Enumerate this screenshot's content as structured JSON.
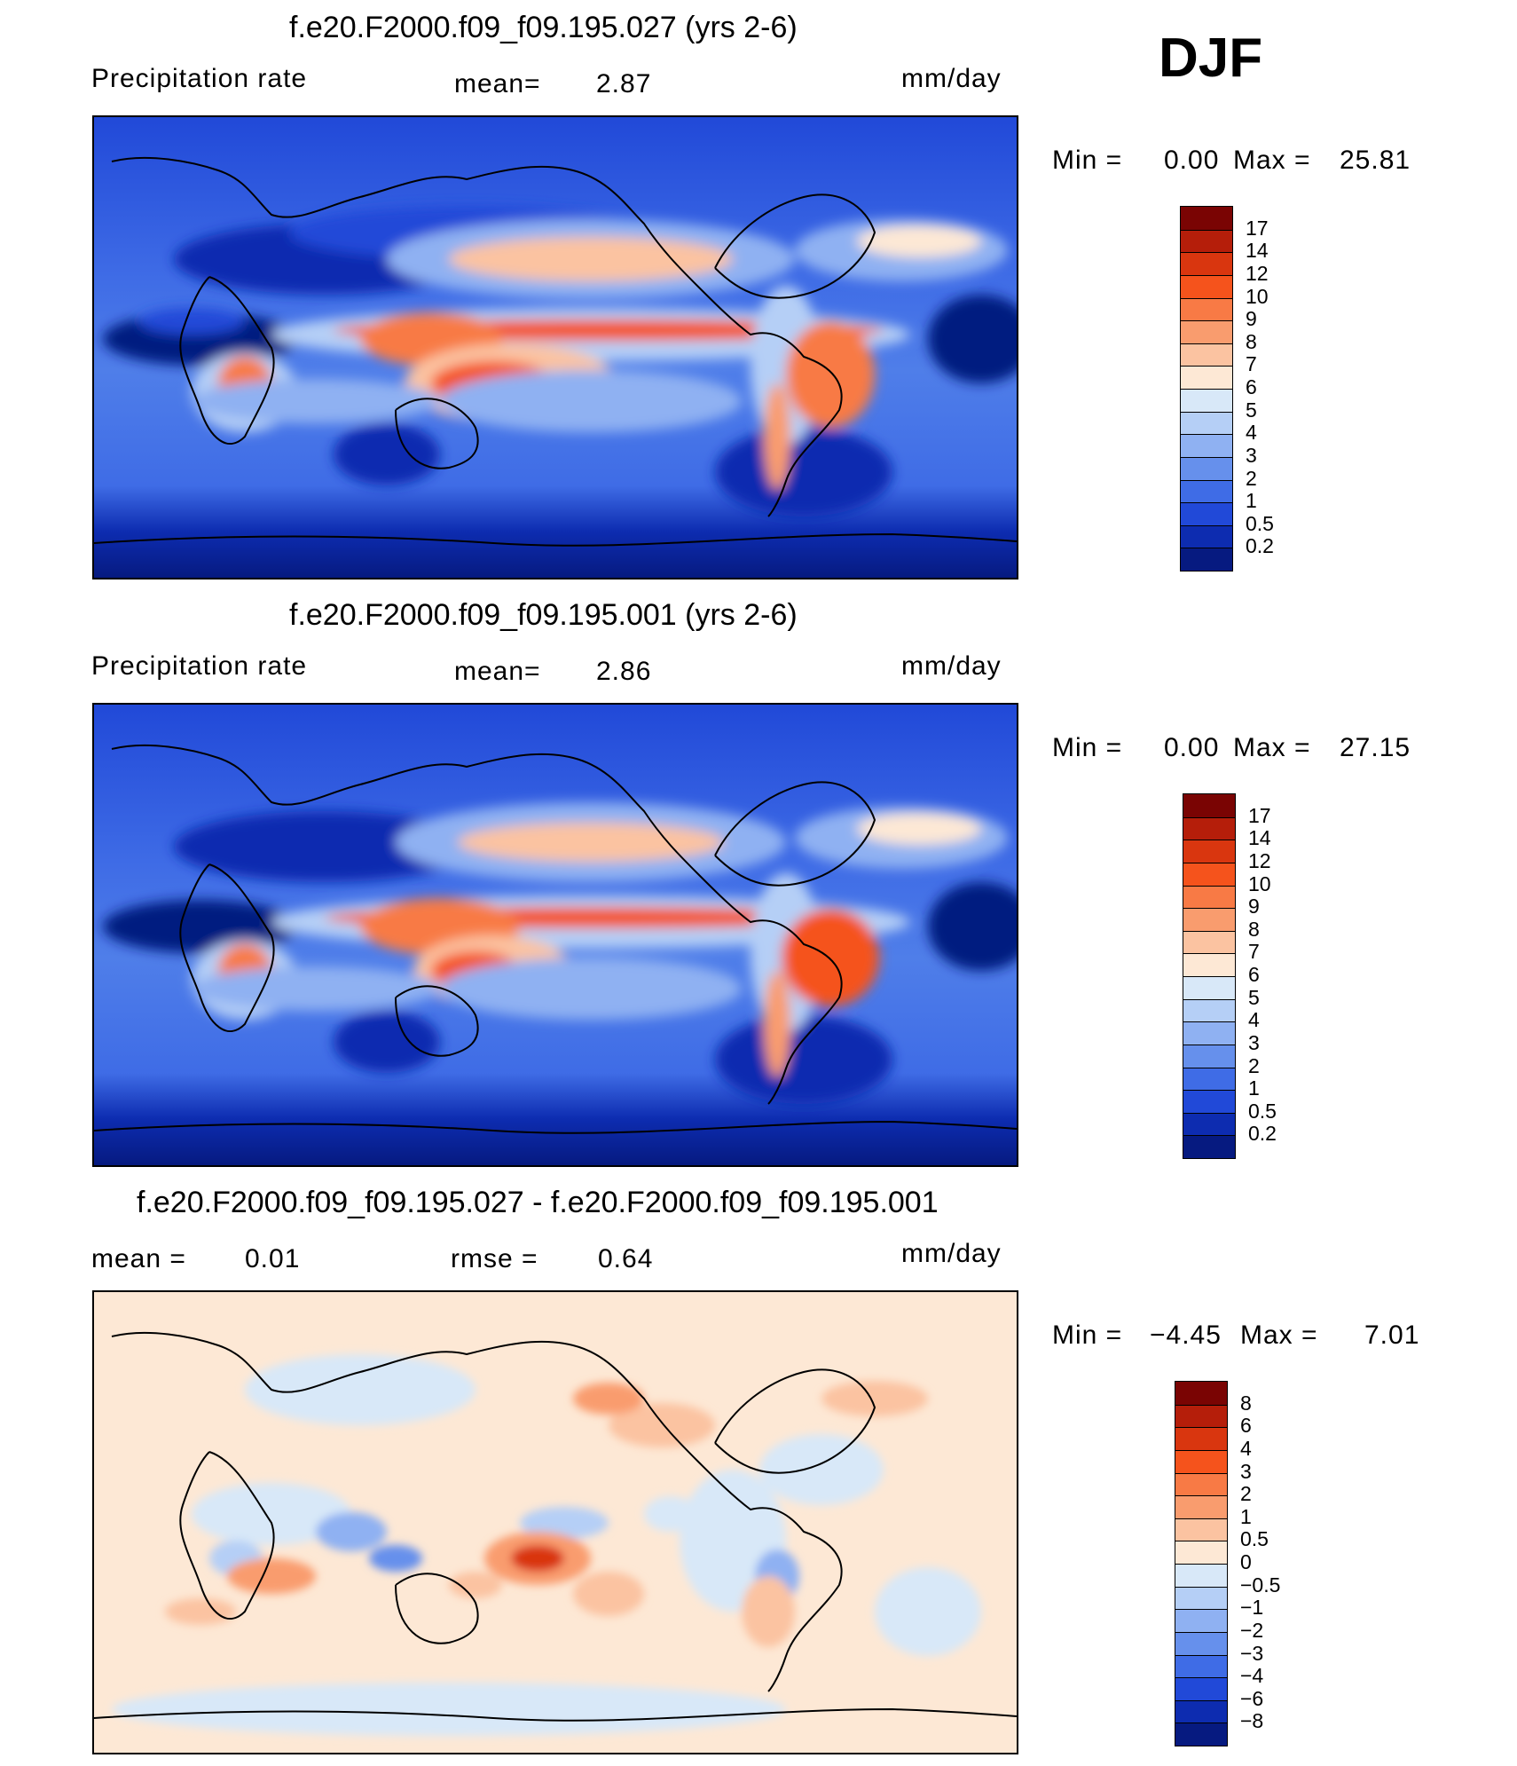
{
  "season": "DJF",
  "panels": [
    {
      "title": "f.e20.F2000.f09_f09.195.027 (yrs 2-6)",
      "variable": "Precipitation  rate",
      "stat1_label": "mean=",
      "stat1_value": "2.87",
      "units": "mm/day",
      "minmax": {
        "min_label": "Min  =",
        "min_value": "0.00",
        "max_label": "Max  =",
        "max_value": "25.81"
      },
      "colorbar": {
        "levels": [
          "17",
          "14",
          "12",
          "10",
          "9",
          "8",
          "7",
          "6",
          "5",
          "4",
          "3",
          "2",
          "1",
          "0.5",
          "0.2"
        ],
        "colors": [
          "#7a0403",
          "#b51e0a",
          "#d9360f",
          "#f5531c",
          "#f87a45",
          "#f99c6e",
          "#fbc3a1",
          "#fde8d5",
          "#d8e8f8",
          "#b5cff6",
          "#8fb1f2",
          "#6690ec",
          "#3f6ce6",
          "#2149d8",
          "#0d2cb0",
          "#061a80"
        ]
      }
    },
    {
      "title": "f.e20.F2000.f09_f09.195.001 (yrs 2-6)",
      "variable": "Precipitation  rate",
      "stat1_label": "mean=",
      "stat1_value": "2.86",
      "units": "mm/day",
      "minmax": {
        "min_label": "Min  =",
        "min_value": "0.00",
        "max_label": "Max  =",
        "max_value": "27.15"
      },
      "colorbar": {
        "levels": [
          "17",
          "14",
          "12",
          "10",
          "9",
          "8",
          "7",
          "6",
          "5",
          "4",
          "3",
          "2",
          "1",
          "0.5",
          "0.2"
        ],
        "colors": [
          "#7a0403",
          "#b51e0a",
          "#d9360f",
          "#f5531c",
          "#f87a45",
          "#f99c6e",
          "#fbc3a1",
          "#fde8d5",
          "#d8e8f8",
          "#b5cff6",
          "#8fb1f2",
          "#6690ec",
          "#3f6ce6",
          "#2149d8",
          "#0d2cb0",
          "#061a80"
        ]
      }
    },
    {
      "title": "f.e20.F2000.f09_f09.195.027 - f.e20.F2000.f09_f09.195.001",
      "stat1_label": "mean  =",
      "stat1_value": "0.01",
      "stat2_label": "rmse  =",
      "stat2_value": "0.64",
      "units": "mm/day",
      "minmax": {
        "min_label": "Min  =",
        "min_value": "−4.45",
        "max_label": "Max  =",
        "max_value": "7.01"
      },
      "colorbar": {
        "levels": [
          "8",
          "6",
          "4",
          "3",
          "2",
          "1",
          "0.5",
          "0",
          "−0.5",
          "−1",
          "−2",
          "−3",
          "−4",
          "−6",
          "−8"
        ],
        "colors": [
          "#7a0403",
          "#b51e0a",
          "#d9360f",
          "#f5531c",
          "#f87a45",
          "#f99c6e",
          "#fbc3a1",
          "#fde8d5",
          "#d8e8f8",
          "#b5cff6",
          "#8fb1f2",
          "#6690ec",
          "#3f6ce6",
          "#2149d8",
          "#0d2cb0",
          "#061a80"
        ]
      }
    }
  ]
}
